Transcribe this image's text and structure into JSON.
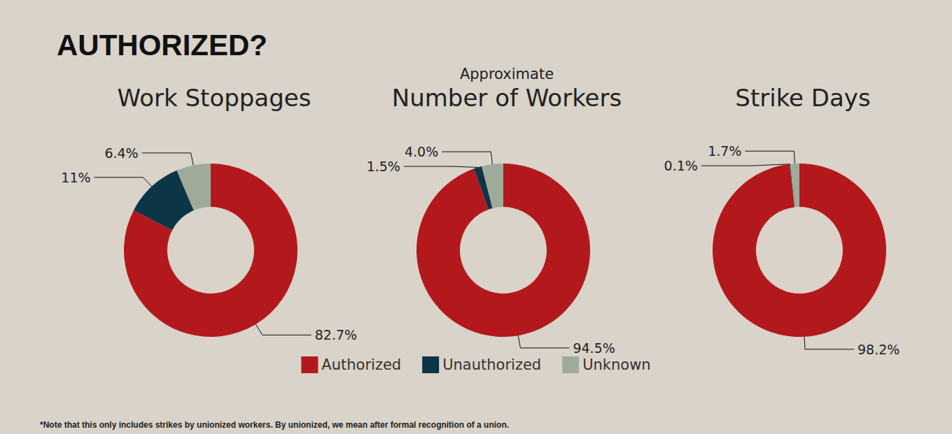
{
  "title": "AUTHORIZED?",
  "note": "*Note that this only includes strikes by unionized workers. By unionized, we mean after formal recognition of a union.",
  "chart_data": [
    {
      "type": "pie",
      "title": "Work Stoppages",
      "categories": [
        "Authorized",
        "Unauthorized",
        "Unknown"
      ],
      "values": [
        82.7,
        11,
        6.4
      ],
      "value_labels": [
        "82.7%",
        "11%",
        "6.4%"
      ],
      "colors": [
        "#b3191c",
        "#0c3546",
        "#9eab9b"
      ],
      "data_labels": true
    },
    {
      "type": "pie",
      "subtitle": "Approximate",
      "title": "Number of Workers",
      "categories": [
        "Authorized",
        "Unauthorized",
        "Unknown"
      ],
      "values": [
        94.5,
        1.5,
        4.0
      ],
      "value_labels": [
        "94.5%",
        "1.5%",
        "4.0%"
      ],
      "colors": [
        "#b3191c",
        "#0c3546",
        "#9eab9b"
      ],
      "data_labels": true,
      "legend": "bottom"
    },
    {
      "type": "pie",
      "title": "Strike Days",
      "categories": [
        "Authorized",
        "Unauthorized",
        "Unknown"
      ],
      "values": [
        98.2,
        0.1,
        1.7
      ],
      "value_labels": [
        "98.2%",
        "0.1%",
        "1.7%"
      ],
      "colors": [
        "#b3191c",
        "#0c3546",
        "#9eab9b"
      ],
      "data_labels": true
    }
  ]
}
